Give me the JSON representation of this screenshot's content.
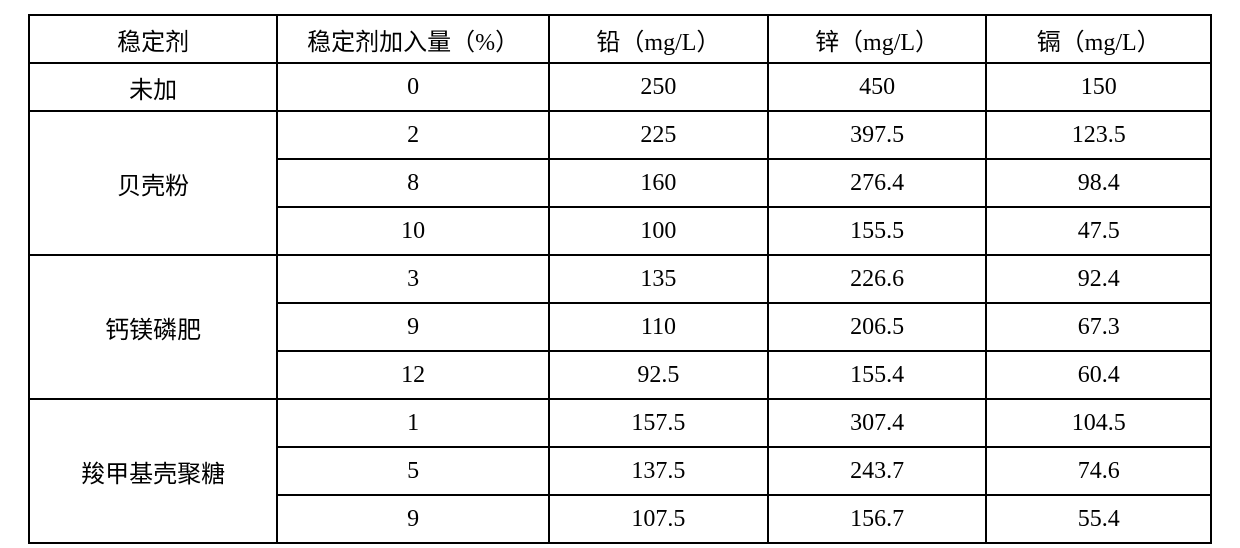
{
  "table": {
    "type": "table",
    "border_color": "#000000",
    "background_color": "#ffffff",
    "text_color": "#000000",
    "font_family": "SimSun",
    "font_size_pt": 18,
    "column_widths_pct": [
      21,
      23,
      18.5,
      18.5,
      19
    ],
    "columns": [
      "稳定剂",
      "稳定剂加入量（%）",
      "铅（mg/L）",
      "锌（mg/L）",
      "镉（mg/L）"
    ],
    "groups": [
      {
        "label": "未加",
        "rows": [
          {
            "amount": "0",
            "pb": "250",
            "zn": "450",
            "cd": "150"
          }
        ]
      },
      {
        "label": "贝壳粉",
        "rows": [
          {
            "amount": "2",
            "pb": "225",
            "zn": "397.5",
            "cd": "123.5"
          },
          {
            "amount": "8",
            "pb": "160",
            "zn": "276.4",
            "cd": "98.4"
          },
          {
            "amount": "10",
            "pb": "100",
            "zn": "155.5",
            "cd": "47.5"
          }
        ]
      },
      {
        "label": "钙镁磷肥",
        "rows": [
          {
            "amount": "3",
            "pb": "135",
            "zn": "226.6",
            "cd": "92.4"
          },
          {
            "amount": "9",
            "pb": "110",
            "zn": "206.5",
            "cd": "67.3"
          },
          {
            "amount": "12",
            "pb": "92.5",
            "zn": "155.4",
            "cd": "60.4"
          }
        ]
      },
      {
        "label": "羧甲基壳聚糖",
        "rows": [
          {
            "amount": "1",
            "pb": "157.5",
            "zn": "307.4",
            "cd": "104.5"
          },
          {
            "amount": "5",
            "pb": "137.5",
            "zn": "243.7",
            "cd": "74.6"
          },
          {
            "amount": "9",
            "pb": "107.5",
            "zn": "156.7",
            "cd": "55.4"
          }
        ]
      }
    ]
  }
}
